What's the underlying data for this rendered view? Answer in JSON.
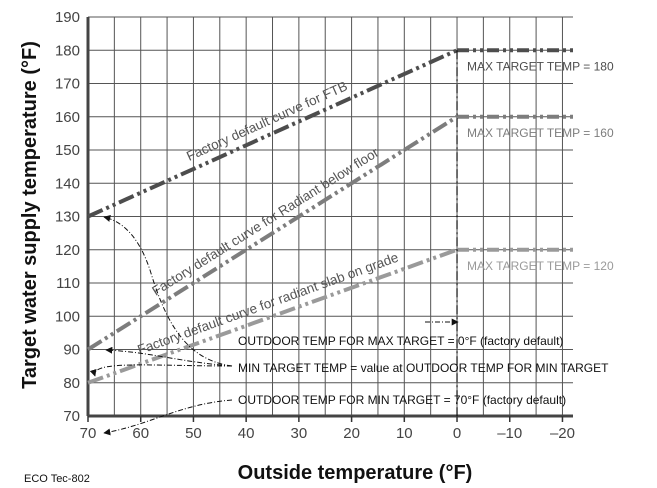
{
  "chart_data": {
    "type": "line",
    "ylabel": "Target water supply temperature (°F)",
    "xlabel": "Outside temperature (°F)",
    "xlim": [
      70,
      -22
    ],
    "ylim": [
      70,
      190
    ],
    "x_ticks": [
      70,
      60,
      50,
      40,
      30,
      20,
      10,
      0,
      -10,
      -20
    ],
    "x_tick_labels": [
      "70",
      "60",
      "50",
      "40",
      "30",
      "20",
      "10",
      "0",
      "–10",
      "–20"
    ],
    "y_ticks": [
      70,
      80,
      90,
      100,
      110,
      120,
      130,
      140,
      150,
      160,
      170,
      180,
      190
    ],
    "y_tick_labels": [
      "70",
      "80",
      "90",
      "100",
      "110",
      "120",
      "130",
      "140",
      "150",
      "160",
      "170",
      "180",
      "190"
    ],
    "grid": true,
    "series": [
      {
        "name": "Factory default curve for FTB",
        "color": "#4d4d4d",
        "points": [
          [
            70,
            130
          ],
          [
            0,
            180
          ]
        ],
        "max_target_line": [
          [
            0,
            180
          ],
          [
            -22,
            180
          ]
        ],
        "max_label": "MAX  TARGET TEMP = 180"
      },
      {
        "name": "Factory default curve for Radiant below floor",
        "color": "#7d7d7d",
        "points": [
          [
            70,
            90
          ],
          [
            0,
            160
          ]
        ],
        "max_target_line": [
          [
            0,
            160
          ],
          [
            -22,
            160
          ]
        ],
        "max_label": "MAX  TARGET TEMP = 160"
      },
      {
        "name": "Factory default curve for radiant slab on grade",
        "color": "#9a9a9a",
        "points": [
          [
            70,
            80
          ],
          [
            0,
            120
          ]
        ],
        "max_target_line": [
          [
            0,
            120
          ],
          [
            -22,
            120
          ]
        ],
        "max_label": "MAX  TARGET TEMP = 120"
      }
    ],
    "vertical_marker": {
      "x": 0,
      "y_from": 70,
      "y_to": 180
    },
    "annotations": [
      {
        "text": "OUTDOOR TEMP FOR MAX TARGET = 0°F (factory default)",
        "points_to": [
          0,
          98
        ]
      },
      {
        "text": "MIN TARGET TEMP = value at OUTDOOR TEMP FOR MIN TARGET",
        "points_to": [
          [
            70,
            130
          ],
          [
            70,
            90
          ],
          [
            70,
            80
          ]
        ]
      },
      {
        "text": "OUTDOOR TEMP FOR MIN TARGET = 70°F (factory default)",
        "points_to": [
          70,
          70
        ]
      }
    ],
    "footer_code": "ECO Tec-802"
  }
}
